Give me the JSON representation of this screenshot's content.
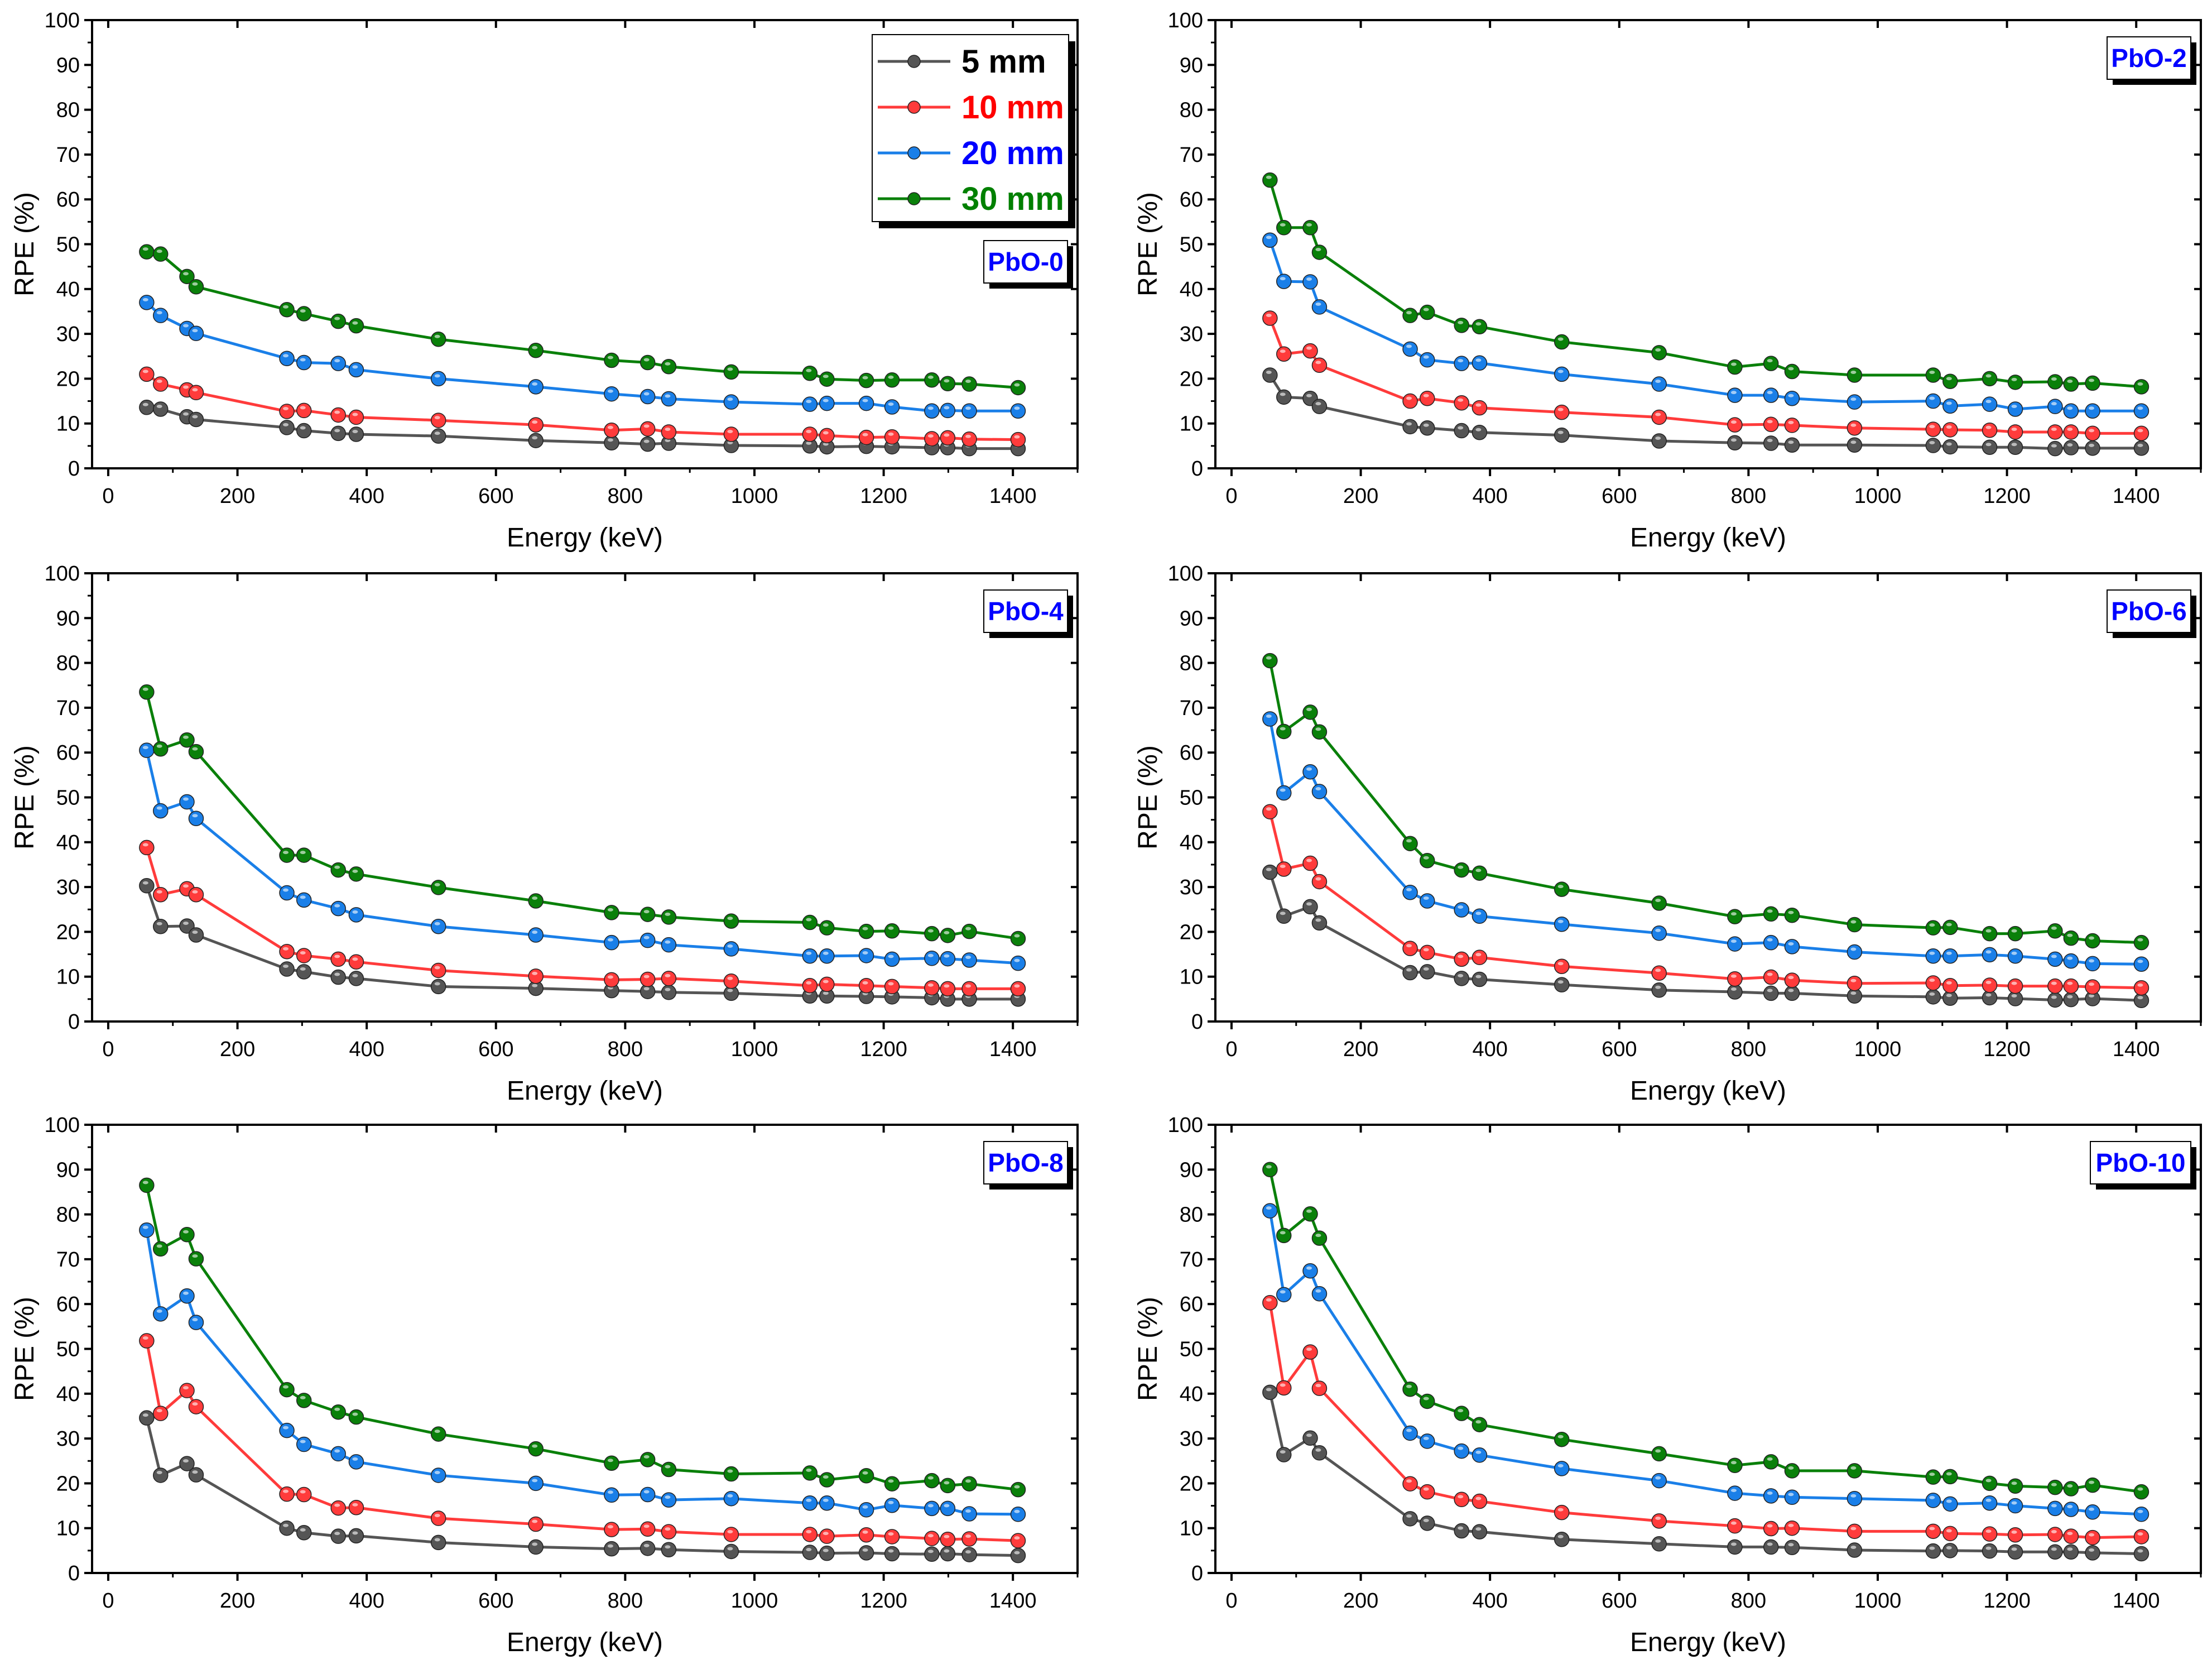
{
  "chart_data": {
    "type": "line",
    "xlabel": "Energy (keV)",
    "ylabel": "RPE (%)",
    "xlim": [
      -25,
      1500
    ],
    "ylim": [
      0,
      100
    ],
    "xticks": [
      0,
      200,
      400,
      600,
      800,
      1000,
      1200,
      1400
    ],
    "yticks": [
      0,
      10,
      20,
      30,
      40,
      50,
      60,
      70,
      80,
      90,
      100
    ],
    "legend_placement": "top-right of first panel",
    "series_meta": [
      {
        "name": "5 mm",
        "color": "#555555",
        "text_color": "#000000"
      },
      {
        "name": "10 mm",
        "color": "#ff3b3b",
        "text_color": "#ff0000"
      },
      {
        "name": "20 mm",
        "color": "#1a7fe8",
        "text_color": "#0000ff"
      },
      {
        "name": "30 mm",
        "color": "#0a800a",
        "text_color": "#008000"
      }
    ],
    "x": [
      59.5,
      81,
      121.8,
      136,
      276.4,
      302.9,
      356,
      383.8,
      511,
      661.7,
      778.9,
      834.8,
      867.4,
      964.1,
      1085.8,
      1112.1,
      1173.2,
      1212.9,
      1274.5,
      1299.1,
      1332.5,
      1408
    ],
    "panels": [
      {
        "label": "PbO-0",
        "series": [
          [
            13.6,
            13.2,
            11.5,
            10.9,
            9.1,
            8.4,
            7.8,
            7.6,
            7.2,
            6.2,
            5.7,
            5.4,
            5.6,
            5.1,
            5.0,
            4.8,
            4.9,
            4.8,
            4.6,
            4.6,
            4.4,
            4.4
          ],
          [
            21.0,
            18.8,
            17.5,
            16.9,
            12.7,
            12.9,
            11.9,
            11.4,
            10.7,
            9.7,
            8.5,
            8.8,
            8.1,
            7.6,
            7.6,
            7.3,
            6.9,
            7.0,
            6.6,
            6.8,
            6.5,
            6.4
          ],
          [
            37.0,
            34.1,
            31.2,
            30.1,
            24.5,
            23.6,
            23.4,
            22.0,
            20.0,
            18.2,
            16.6,
            16.0,
            15.5,
            14.8,
            14.3,
            14.5,
            14.5,
            13.7,
            12.8,
            12.9,
            12.8,
            12.8
          ],
          [
            48.3,
            47.8,
            42.8,
            40.5,
            35.4,
            34.5,
            32.8,
            31.8,
            28.8,
            26.3,
            24.1,
            23.6,
            22.7,
            21.5,
            21.2,
            19.9,
            19.6,
            19.7,
            19.7,
            18.9,
            18.8,
            18.0
          ]
        ]
      },
      {
        "label": "PbO-2",
        "series": [
          [
            20.8,
            15.9,
            15.6,
            13.8,
            9.3,
            9.0,
            8.4,
            8.0,
            7.4,
            6.1,
            5.7,
            5.6,
            5.2,
            5.2,
            5.1,
            4.8,
            4.7,
            4.7,
            4.4,
            4.6,
            4.5,
            4.5
          ],
          [
            33.5,
            25.5,
            26.2,
            23.0,
            15.0,
            15.6,
            14.6,
            13.5,
            12.5,
            11.4,
            9.7,
            9.8,
            9.6,
            9.0,
            8.7,
            8.6,
            8.5,
            8.1,
            8.1,
            8.1,
            7.8,
            7.8
          ],
          [
            50.9,
            41.7,
            41.6,
            36.0,
            26.6,
            24.2,
            23.4,
            23.5,
            21.0,
            18.8,
            16.3,
            16.3,
            15.6,
            14.8,
            15.0,
            13.9,
            14.3,
            13.2,
            13.8,
            12.8,
            12.8,
            12.8
          ],
          [
            64.3,
            53.7,
            53.7,
            48.2,
            34.1,
            34.8,
            31.9,
            31.6,
            28.2,
            25.8,
            22.6,
            23.4,
            21.6,
            20.8,
            20.8,
            19.4,
            20.0,
            19.2,
            19.3,
            18.8,
            19.0,
            18.2
          ]
        ]
      },
      {
        "label": "PbO-4",
        "series": [
          [
            30.3,
            21.2,
            21.3,
            19.3,
            11.7,
            11.1,
            9.9,
            9.6,
            7.8,
            7.4,
            6.9,
            6.7,
            6.5,
            6.3,
            5.7,
            5.7,
            5.6,
            5.5,
            5.3,
            5.0,
            5.0,
            5.0
          ],
          [
            38.8,
            28.3,
            29.6,
            28.3,
            15.6,
            14.7,
            13.9,
            13.3,
            11.4,
            10.1,
            9.3,
            9.4,
            9.6,
            9.0,
            8.0,
            8.3,
            8.0,
            7.8,
            7.5,
            7.3,
            7.3,
            7.3
          ],
          [
            60.5,
            47.0,
            49.0,
            45.3,
            28.7,
            27.1,
            25.2,
            23.8,
            21.2,
            19.3,
            17.6,
            18.1,
            17.1,
            16.2,
            14.6,
            14.6,
            14.7,
            13.9,
            14.1,
            14.0,
            13.7,
            13.0
          ],
          [
            73.5,
            60.8,
            62.8,
            60.2,
            37.1,
            37.1,
            33.8,
            32.9,
            29.9,
            26.9,
            24.3,
            23.9,
            23.3,
            22.4,
            22.1,
            20.9,
            20.1,
            20.2,
            19.6,
            19.2,
            20.1,
            18.5
          ]
        ]
      },
      {
        "label": "PbO-6",
        "series": [
          [
            33.3,
            23.5,
            25.6,
            22.0,
            10.9,
            11.1,
            9.6,
            9.4,
            8.2,
            7.0,
            6.6,
            6.3,
            6.3,
            5.7,
            5.5,
            5.2,
            5.3,
            5.1,
            4.8,
            4.9,
            5.1,
            4.7
          ],
          [
            46.8,
            34.0,
            35.3,
            31.2,
            16.3,
            15.4,
            13.9,
            14.3,
            12.3,
            10.8,
            9.5,
            9.9,
            9.2,
            8.5,
            8.6,
            8.0,
            8.1,
            7.9,
            7.9,
            7.9,
            7.7,
            7.5
          ],
          [
            67.5,
            51.0,
            55.7,
            51.3,
            28.8,
            26.9,
            24.9,
            23.5,
            21.7,
            19.7,
            17.3,
            17.6,
            16.7,
            15.5,
            14.6,
            14.6,
            14.9,
            14.6,
            13.9,
            13.5,
            12.9,
            12.8
          ],
          [
            80.5,
            64.7,
            69.0,
            64.6,
            39.7,
            35.9,
            33.8,
            33.1,
            29.5,
            26.4,
            23.4,
            24.0,
            23.7,
            21.6,
            20.9,
            21.0,
            19.6,
            19.6,
            20.2,
            18.6,
            18.0,
            17.6
          ]
        ]
      },
      {
        "label": "PbO-8",
        "series": [
          [
            34.6,
            21.8,
            24.4,
            21.9,
            10.0,
            9.0,
            8.2,
            8.3,
            6.8,
            5.8,
            5.4,
            5.5,
            5.2,
            4.8,
            4.6,
            4.4,
            4.5,
            4.3,
            4.2,
            4.3,
            4.1,
            3.9
          ],
          [
            51.8,
            35.6,
            40.7,
            37.1,
            17.6,
            17.5,
            14.5,
            14.6,
            12.2,
            10.9,
            9.7,
            9.8,
            9.2,
            8.6,
            8.6,
            8.2,
            8.5,
            8.1,
            7.7,
            7.5,
            7.6,
            7.2
          ],
          [
            76.5,
            57.8,
            61.8,
            55.9,
            31.8,
            28.7,
            26.6,
            24.8,
            21.8,
            20.0,
            17.4,
            17.5,
            16.3,
            16.6,
            15.6,
            15.6,
            14.1,
            15.1,
            14.4,
            14.4,
            13.2,
            13.1
          ],
          [
            86.5,
            72.3,
            75.5,
            70.1,
            40.9,
            38.5,
            35.9,
            34.8,
            31.0,
            27.7,
            24.5,
            25.3,
            23.1,
            22.1,
            22.3,
            20.8,
            21.7,
            19.9,
            20.6,
            19.5,
            19.9,
            18.6
          ]
        ]
      },
      {
        "label": "PbO-10",
        "series": [
          [
            40.3,
            26.4,
            30.1,
            26.8,
            12.1,
            11.1,
            9.4,
            9.2,
            7.5,
            6.5,
            5.8,
            5.8,
            5.7,
            5.1,
            4.9,
            5.0,
            4.9,
            4.7,
            4.7,
            4.7,
            4.5,
            4.3
          ],
          [
            60.3,
            41.3,
            49.3,
            41.2,
            19.9,
            18.1,
            16.4,
            16.0,
            13.5,
            11.6,
            10.5,
            9.9,
            10.0,
            9.3,
            9.3,
            8.8,
            8.7,
            8.5,
            8.6,
            8.2,
            7.9,
            8.1
          ],
          [
            80.8,
            62.1,
            67.4,
            62.3,
            31.2,
            29.4,
            27.2,
            26.3,
            23.3,
            20.6,
            17.8,
            17.2,
            16.9,
            16.6,
            16.2,
            15.4,
            15.6,
            15.0,
            14.4,
            14.2,
            13.6,
            13.1
          ],
          [
            90.0,
            75.3,
            80.1,
            74.7,
            41.0,
            38.3,
            35.6,
            33.1,
            29.8,
            26.6,
            24.0,
            24.8,
            22.8,
            22.8,
            21.4,
            21.5,
            20.0,
            19.4,
            19.1,
            18.8,
            19.6,
            18.1
          ]
        ]
      }
    ]
  }
}
